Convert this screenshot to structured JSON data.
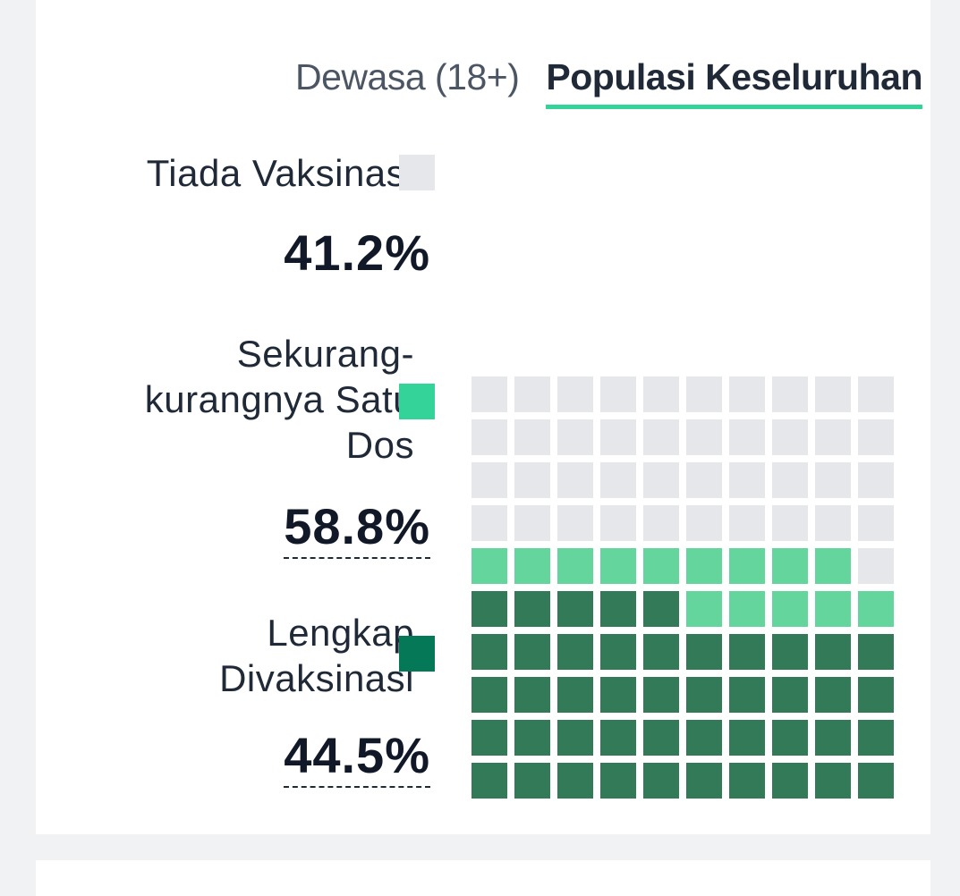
{
  "tabs": [
    {
      "label": "Dewasa (18+)",
      "active": false
    },
    {
      "label": "Populasi Keseluruhan",
      "active": true
    }
  ],
  "chart_data": {
    "type": "waffle",
    "grid": {
      "rows": 10,
      "cols": 10
    },
    "series": [
      {
        "name": "Tiada Vaksinasi",
        "value": 41.2,
        "display": "41.2%",
        "color": "#e5e7eb"
      },
      {
        "name": "Sekurang-kurangnya Satu Dos",
        "value": 58.8,
        "display": "58.8%",
        "color": "#34d399"
      },
      {
        "name": "Lengkap Divaksinasi",
        "value": 44.5,
        "display": "44.5%",
        "color": "#047857"
      }
    ],
    "waffle_colors": {
      "none": "#e5e7eb",
      "partial": "#63d59d",
      "full": "#337a59"
    }
  },
  "colors": {
    "accent": "#34d399",
    "card": "#ffffff",
    "background": "#f1f2f4"
  }
}
